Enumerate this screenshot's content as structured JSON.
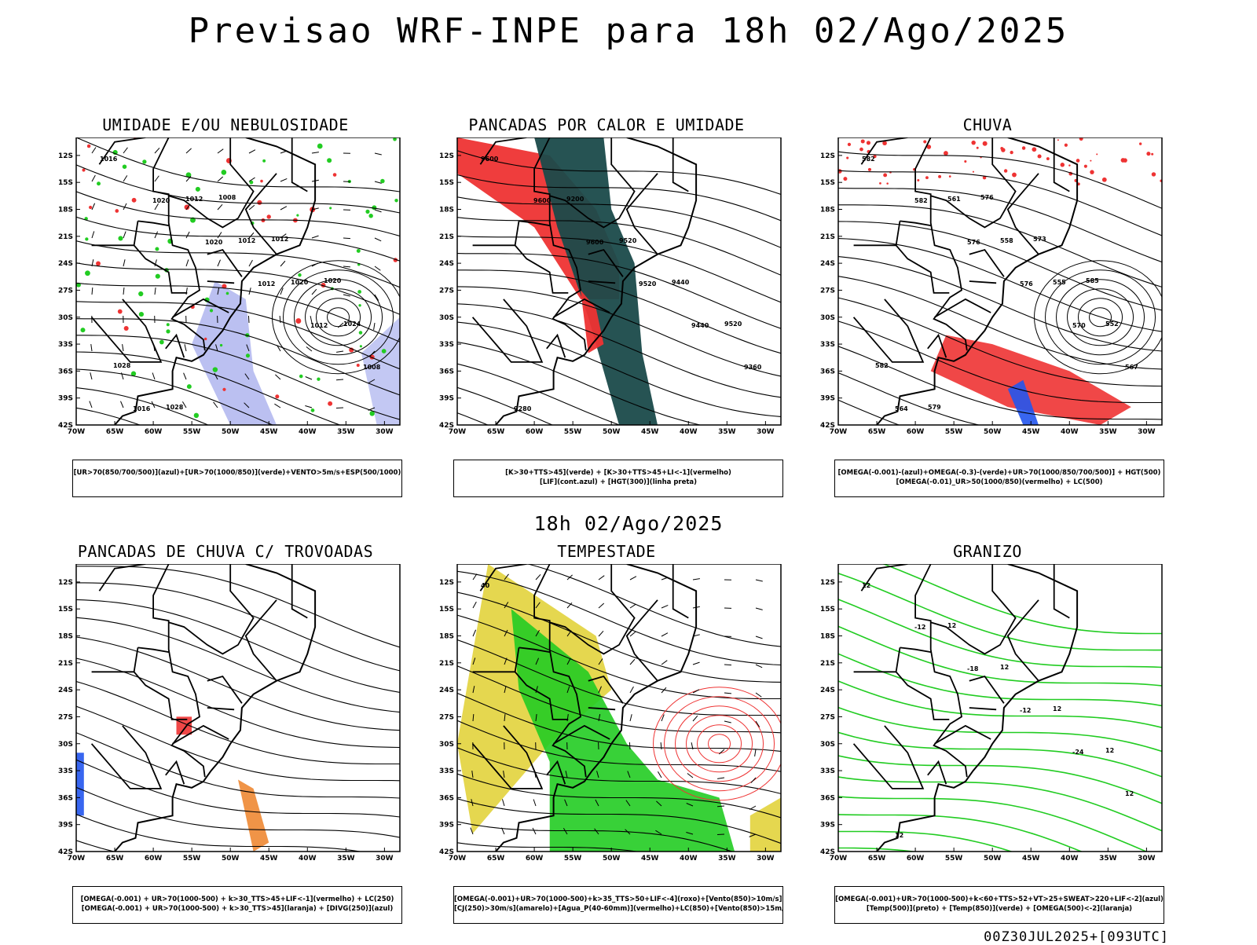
{
  "header": {
    "title": "Previsao WRF-INPE  para 18h 02/Ago/2025",
    "mid_date": "18h 02/Ago/2025",
    "run_stamp": "00Z30JUL2025+[093UTC]"
  },
  "axes": {
    "lat_labels": [
      "12S",
      "15S",
      "18S",
      "21S",
      "24S",
      "27S",
      "30S",
      "33S",
      "36S",
      "39S",
      "42S"
    ],
    "lon_labels": [
      "70W",
      "65W",
      "60W",
      "55W",
      "50W",
      "45W",
      "40W",
      "35W",
      "30W"
    ]
  },
  "colors": {
    "red": "#ee3333",
    "green": "#22cc22",
    "blue": "#2255ee",
    "lavender": "#aab0ee",
    "darkteal": "#1a4a4a",
    "yellow": "#e0d030",
    "orange": "#ee8833",
    "contour": "#000000"
  },
  "panels": [
    {
      "id": "umidade",
      "title": "UMIDADE E/OU NEBULOSIDADE",
      "legend": [
        "[UR>70(850/700/500)](azul)+[UR>70(1000/850)](verde)+VENTO>5m/s+ESP(500/1000)"
      ],
      "contour_labels": [
        "1016",
        "1020",
        "1020",
        "1012",
        "1012",
        "1008",
        "1016",
        "1012",
        "1012",
        "1020",
        "1024",
        "1028",
        "1028",
        "1008",
        "1012",
        "1020"
      ]
    },
    {
      "id": "pancadas-calor",
      "title": "PANCADAS POR CALOR E UMIDADE",
      "legend": [
        "[K>30+TTS>45](verde) + [K>30+TTS>45+LI<-1](vermelho)",
        "[LIF](cont.azul) + [HGT(300)](linha preta)"
      ],
      "contour_labels": [
        "9600",
        "9600",
        "9600",
        "9520",
        "9440",
        "9360",
        "9280",
        "9200",
        "9520",
        "9440",
        "9520"
      ]
    },
    {
      "id": "chuva",
      "title": "CHUVA",
      "legend": [
        "[OMEGA(-0.001)-(azul)+OMEGA(-0.3)-(verde)+UR>70(1000/850/700/500)] + HGT(500)",
        "[OMEGA(-0.01)_UR>50(1000/850)(vermelho) + LC(500)"
      ],
      "contour_labels": [
        "582",
        "582",
        "576",
        "576",
        "570",
        "567",
        "564",
        "561",
        "558",
        "555",
        "552",
        "582",
        "579",
        "576",
        "573",
        "585"
      ]
    },
    {
      "id": "trovoadas",
      "title": "PANCADAS DE CHUVA C/ TROVOADAS",
      "legend": [
        "[OMEGA(-0.001) + UR>70(1000-500) + k>30_TTS>45+LIF<-1](vermelho) + LC(250)",
        "[OMEGA(-0.001) + UR>70(1000-500) + k>30_TTS>45](laranja) + [DIVG(250)](azul)"
      ],
      "contour_labels": []
    },
    {
      "id": "tempestade",
      "title": "TEMPESTADE",
      "legend": [
        "[OMEGA(-0.001)+UR>70(1000-500)+k>35_TTS>50+LIF<-4](roxo)+[Vento(850)>10m/s](verde)",
        "[CJ(250)>30m/s](amarelo)+[Agua_P(40-60mm)](vermelho)+LC(850)+[Vento(850)>15m/s](vetor)"
      ],
      "contour_labels": [
        "40"
      ]
    },
    {
      "id": "granizo",
      "title": "GRANIZO",
      "legend": [
        "[OMEGA(-0.001)+UR>70(1000-500)+k<60+TTS>52+VT>25+SWEAT>220+LIF<-2](azul)",
        "[Temp(500)](preto) + [Temp(850)](verde) + [OMEGA(500)<-2](laranja)"
      ],
      "contour_labels": [
        "12",
        "-12",
        "-18",
        "-12",
        "-24",
        "12",
        "12",
        "12",
        "12",
        "12",
        "12"
      ]
    }
  ]
}
